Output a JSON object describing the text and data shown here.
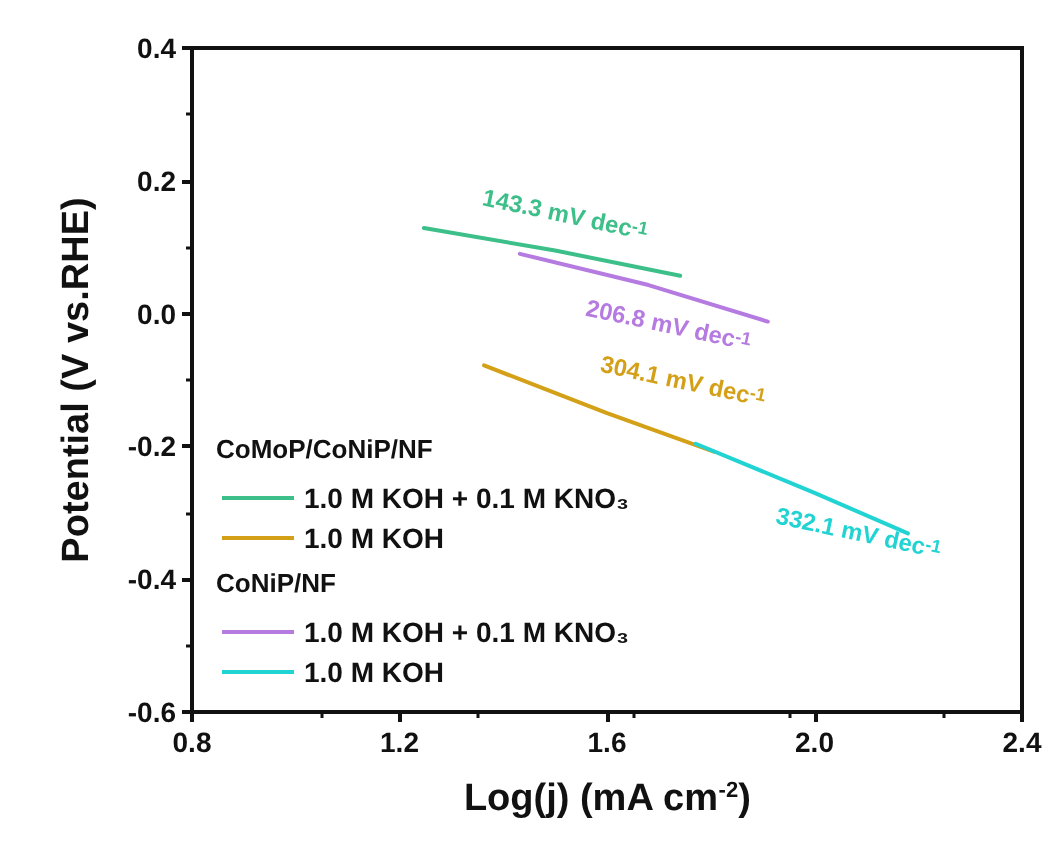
{
  "chart_data": {
    "type": "line",
    "xlabel": "Log(j) (mA cm$^{-2}$)",
    "ylabel": "Potential (V vs.RHE)",
    "xlim": [
      0.8,
      2.4
    ],
    "xticks": [
      0.8,
      1.2,
      1.6,
      {
        "value": 2.0,
        "label": "2.0"
      },
      2.4
    ],
    "ylim": [
      -0.6,
      0.4
    ],
    "yticks": [
      -0.6,
      -0.4,
      -0.2,
      {
        "value": 0,
        "label": "0.0"
      },
      0.2,
      0.4
    ],
    "grid": false,
    "legend": "left",
    "marker": "none",
    "line_style": "solid",
    "series": [
      {
        "name": "1.0 M KOH + 0.1 M KNO₃",
        "color": "#3dbf8a",
        "x": [
          1.247,
          1.5,
          1.741
        ],
        "values": [
          0.129,
          0.095,
          0.057
        ]
      },
      {
        "name": "1.0 M KOH",
        "color": "#d4a017",
        "x": [
          1.363,
          1.6,
          1.806
        ],
        "values": [
          -0.078,
          -0.15,
          -0.208
        ]
      },
      {
        "name": "1.0 M KOH + 0.1 M KNO₃",
        "color": "#b57be0",
        "x": [
          1.432,
          1.68,
          1.91
        ],
        "values": [
          0.09,
          0.043,
          -0.012
        ]
      },
      {
        "name": "1.0 M KOH",
        "color": "#22d3d3",
        "x": [
          1.771,
          2.0,
          2.18
        ],
        "values": [
          -0.196,
          -0.27,
          -0.331
        ]
      }
    ],
    "annotations": [
      "CoMoP/CoNiP/NF",
      "CoNiP/NF",
      "143.3 mV dec$^{-1}$",
      "304.1 mV dec$^{-1}$",
      "206.8 mV dec$^{-1}$",
      "332.1 mV dec$^{-1}$"
    ]
  }
}
